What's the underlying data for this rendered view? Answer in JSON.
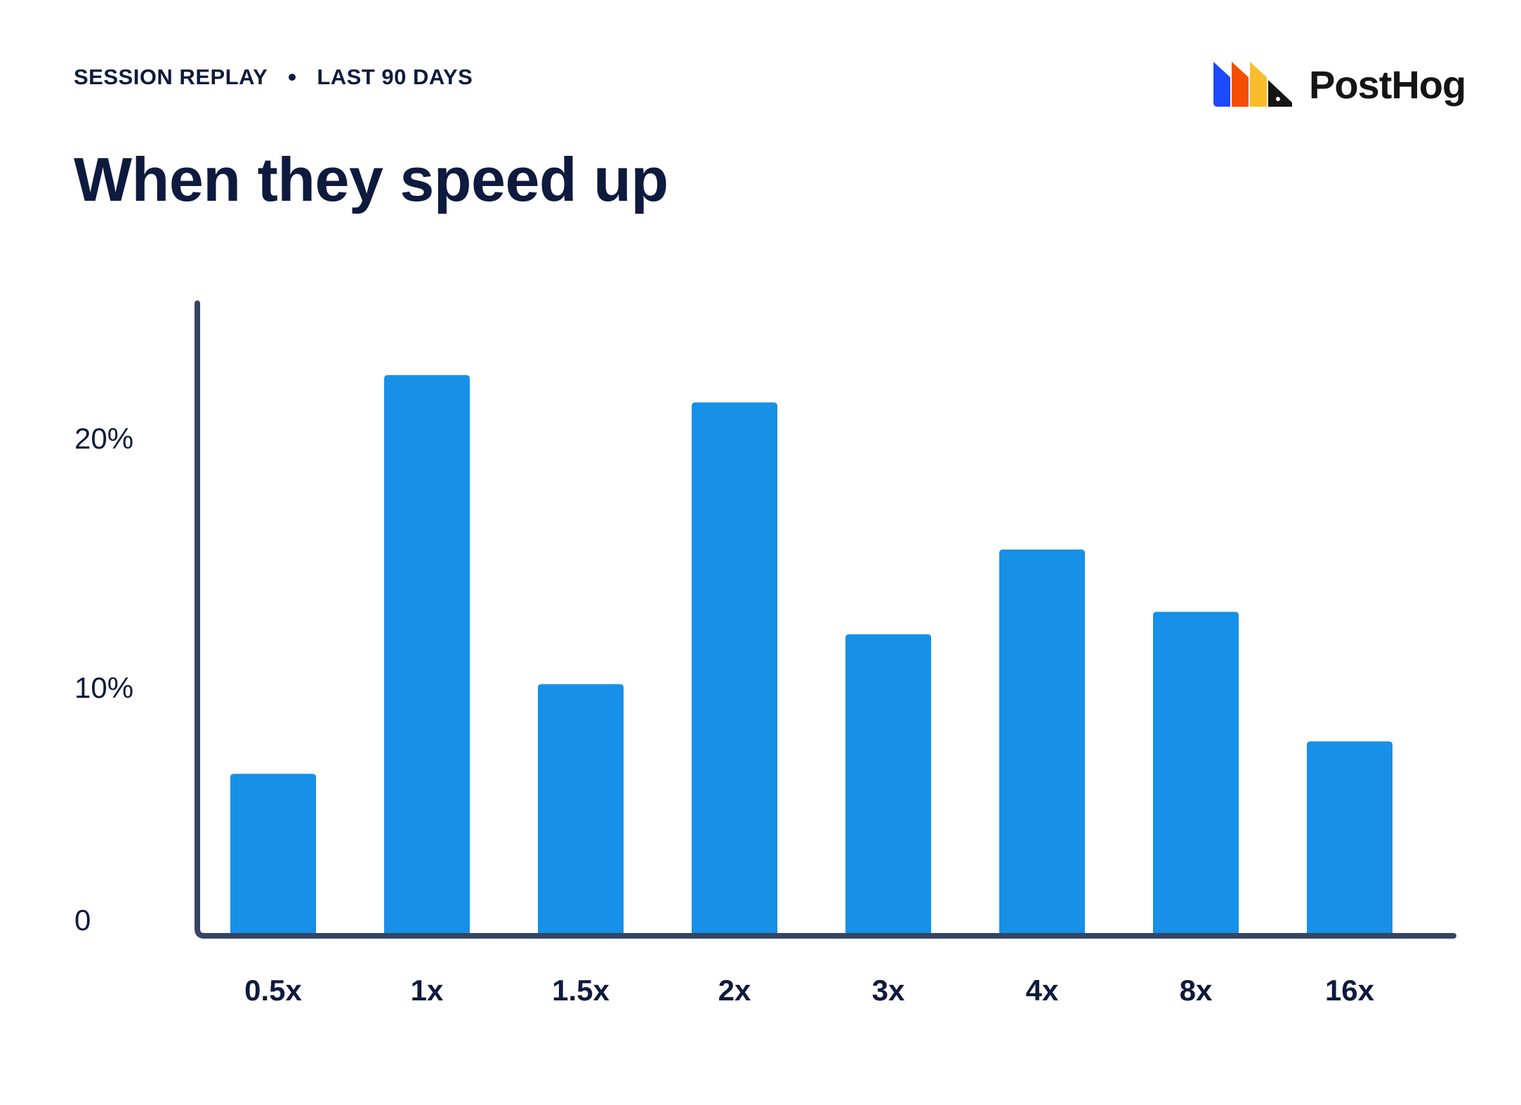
{
  "header": {
    "eyebrow_left": "SESSION REPLAY",
    "eyebrow_right": "LAST 90 DAYS"
  },
  "brand": {
    "name": "PostHog",
    "logo_colors": [
      "#1d4aff",
      "#f54e00",
      "#f9bd2b",
      "#151515"
    ]
  },
  "chart_data": {
    "type": "bar",
    "title": "When they speed up",
    "xlabel": "",
    "ylabel": "",
    "categories": [
      "0.5x",
      "1x",
      "1.5x",
      "2x",
      "3x",
      "4x",
      "8x",
      "16x"
    ],
    "values": [
      6.5,
      22.5,
      10.1,
      21.4,
      12.1,
      15.5,
      13.0,
      7.8
    ],
    "ylim": [
      0,
      25
    ],
    "y_ticks": [
      {
        "value": 0,
        "label": "0"
      },
      {
        "value": 10,
        "label": "10%"
      },
      {
        "value": 20,
        "label": "20%"
      }
    ],
    "bar_color": "#1790e8",
    "axis_color": "#344563",
    "grid": false,
    "legend": "none"
  }
}
